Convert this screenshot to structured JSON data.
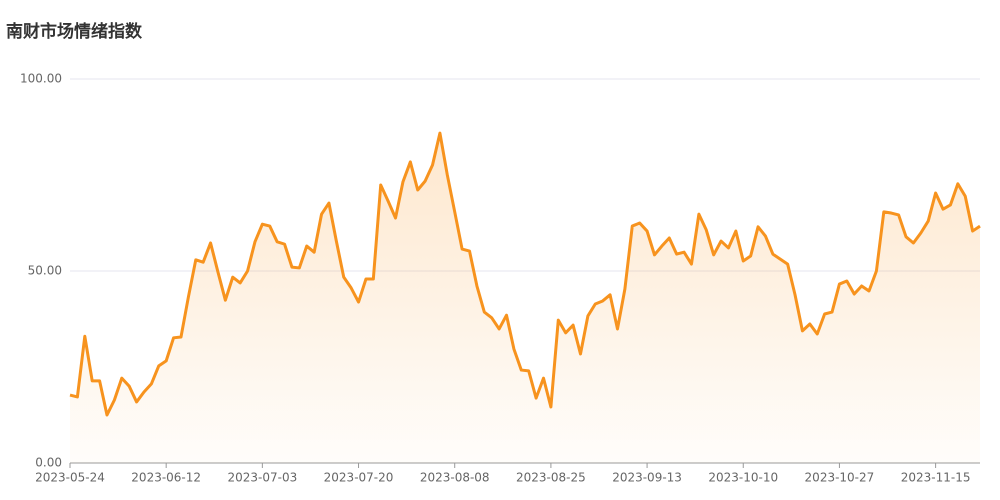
{
  "chart_data": {
    "type": "area",
    "title": "南财市场情绪指数",
    "categories": [
      "2023-05-24",
      null,
      null,
      null,
      null,
      null,
      null,
      null,
      null,
      null,
      null,
      null,
      null,
      "2023-06-12",
      null,
      null,
      null,
      null,
      null,
      null,
      null,
      null,
      null,
      null,
      null,
      null,
      "2023-07-03",
      null,
      null,
      null,
      null,
      null,
      null,
      null,
      null,
      null,
      null,
      null,
      null,
      "2023-07-20",
      null,
      null,
      null,
      null,
      null,
      null,
      null,
      null,
      null,
      null,
      null,
      null,
      "2023-08-08",
      null,
      null,
      null,
      null,
      null,
      null,
      null,
      null,
      null,
      null,
      null,
      null,
      "2023-08-25",
      null,
      null,
      null,
      null,
      null,
      null,
      null,
      null,
      null,
      null,
      null,
      null,
      "2023-09-13",
      null,
      null,
      null,
      null,
      null,
      null,
      null,
      null,
      null,
      null,
      null,
      null,
      "2023-10-10",
      null,
      null,
      null,
      null,
      null,
      null,
      null,
      null,
      null,
      null,
      null,
      null,
      "2023-10-27",
      null,
      null,
      null,
      null,
      null,
      null,
      null,
      null,
      null,
      null,
      null,
      null,
      "2023-11-15",
      null,
      null,
      null,
      null,
      null,
      null
    ],
    "values": [
      17.7,
      17.2,
      33,
      21.4,
      21.4,
      12.5,
      16.4,
      22.1,
      20,
      15.9,
      18.5,
      20.6,
      25.3,
      26.6,
      32.6,
      32.8,
      43.2,
      52.9,
      52.3,
      57.3,
      49.7,
      42.4,
      48.4,
      46.9,
      50,
      57.6,
      62.2,
      61.7,
      57.6,
      57,
      51,
      50.8,
      56.5,
      54.9,
      64.8,
      67.7,
      57.8,
      48.4,
      45.6,
      41.9,
      47.9,
      47.9,
      72.4,
      68.2,
      63.8,
      73.2,
      78.4,
      71.1,
      73.4,
      77.6,
      85.9,
      75,
      65.4,
      55.7,
      55.2,
      46.1,
      39.3,
      37.8,
      34.9,
      38.5,
      29.7,
      24.2,
      24,
      16.9,
      22.1,
      14.6,
      37.2,
      33.9,
      35.9,
      28.4,
      38.3,
      41.4,
      42.2,
      43.8,
      34.9,
      45.3,
      61.7,
      62.5,
      60.4,
      54.2,
      56.5,
      58.6,
      54.4,
      54.9,
      51.8,
      64.8,
      60.7,
      54.2,
      57.8,
      56,
      60.4,
      52.6,
      53.9,
      61.5,
      59.1,
      54.4,
      53.1,
      51.8,
      43.8,
      34.4,
      36.2,
      33.6,
      38.8,
      39.3,
      46.6,
      47.4,
      44,
      46.1,
      44.8,
      50,
      65.4,
      65.1,
      64.6,
      58.9,
      57.3,
      59.9,
      63,
      70.3,
      66.1,
      67.2,
      72.7,
      69.5,
      60.4,
      61.7
    ],
    "color": "#f7931e",
    "ylim": [
      0,
      100
    ],
    "yticks": [
      {
        "value": 0,
        "label": "0.00"
      },
      {
        "value": 50,
        "label": "50.00"
      },
      {
        "value": 100,
        "label": "100.00"
      }
    ],
    "grid": true
  }
}
